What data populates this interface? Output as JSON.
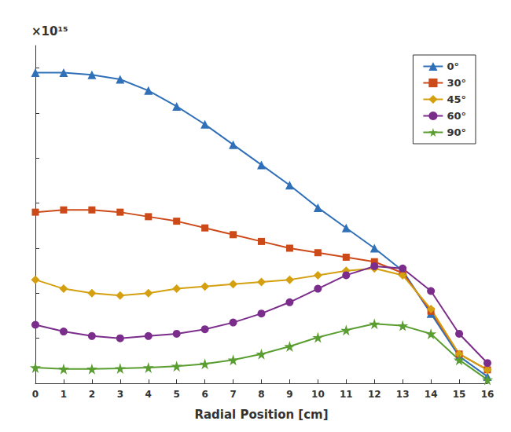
{
  "chart_data": {
    "type": "line",
    "xlabel": "Radial Position [cm]",
    "annotations": [
      "×10¹⁵"
    ],
    "x": [
      0,
      1,
      2,
      3,
      4,
      5,
      6,
      7,
      8,
      9,
      10,
      11,
      12,
      13,
      14,
      15,
      16
    ],
    "series": [
      {
        "name": "0°",
        "color": "#3070b8",
        "marker": "triangle",
        "values": [
          6.9,
          6.9,
          6.85,
          6.75,
          6.5,
          6.15,
          5.75,
          5.3,
          4.85,
          4.4,
          3.9,
          3.45,
          3.0,
          2.5,
          1.55,
          0.6,
          0.15
        ]
      },
      {
        "name": "30°",
        "color": "#cc4a1a",
        "marker": "square",
        "values": [
          3.8,
          3.85,
          3.85,
          3.8,
          3.7,
          3.6,
          3.45,
          3.3,
          3.15,
          3.0,
          2.9,
          2.8,
          2.7,
          2.45,
          1.6,
          0.65,
          0.3
        ]
      },
      {
        "name": "45°",
        "color": "#d4a010",
        "marker": "diamond",
        "values": [
          2.3,
          2.1,
          2.0,
          1.95,
          2.0,
          2.1,
          2.15,
          2.2,
          2.25,
          2.3,
          2.4,
          2.5,
          2.55,
          2.4,
          1.65,
          0.65,
          0.3
        ]
      },
      {
        "name": "60°",
        "color": "#7b2d8b",
        "marker": "circle",
        "values": [
          1.3,
          1.15,
          1.05,
          1.0,
          1.05,
          1.1,
          1.2,
          1.35,
          1.55,
          1.8,
          2.1,
          2.4,
          2.6,
          2.55,
          2.05,
          1.1,
          0.45
        ]
      },
      {
        "name": "90°",
        "color": "#5a9e32",
        "marker": "star",
        "values": [
          0.35,
          0.32,
          0.32,
          0.33,
          0.35,
          0.38,
          0.43,
          0.52,
          0.65,
          0.82,
          1.02,
          1.18,
          1.32,
          1.28,
          1.1,
          0.52,
          0.08
        ]
      }
    ],
    "xlim": [
      0,
      16
    ],
    "ylim": [
      0,
      7.5
    ],
    "xticks": [
      0,
      1,
      2,
      3,
      4,
      5,
      6,
      7,
      8,
      9,
      10,
      11,
      12,
      13,
      14,
      15,
      16
    ],
    "yticks": [
      0,
      1,
      2,
      3,
      4,
      5,
      6,
      7
    ],
    "grid": false,
    "legend": "upper right",
    "tick_labels": "x"
  }
}
